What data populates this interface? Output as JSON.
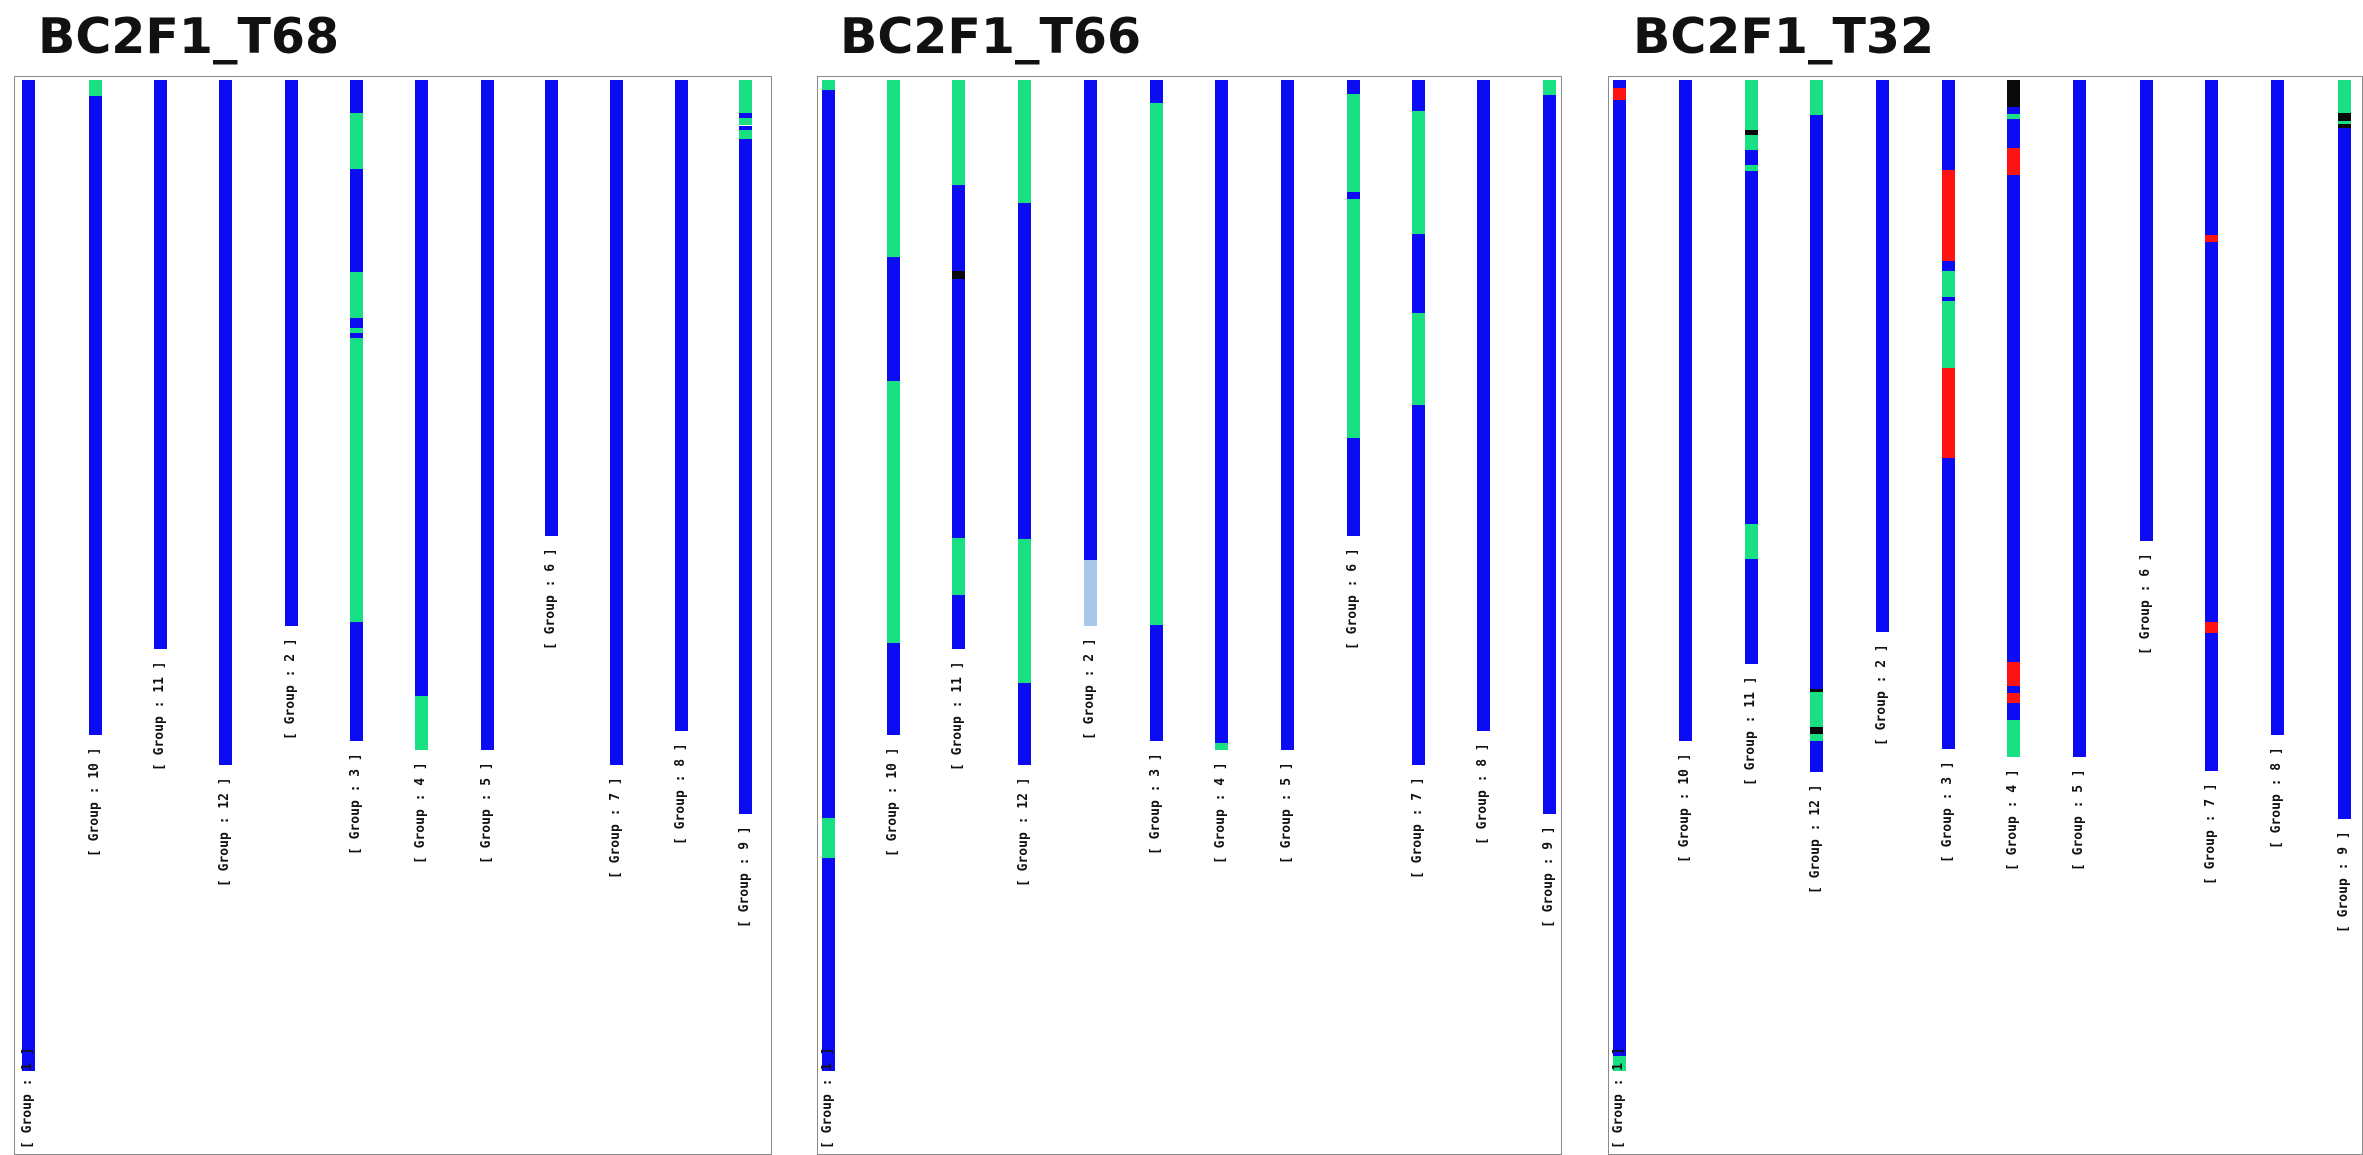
{
  "colors": {
    "blue": "#0b0bf4",
    "green": "#19e083",
    "red": "#ff1212",
    "black": "#0a0a0a",
    "lightblue": "#a8c8ea"
  },
  "panels": [
    {
      "title": "BC2F1_T68",
      "chromosomes": [
        {
          "group": "[ Group : 1 ]",
          "length": 0.925,
          "segments": [
            [
              0,
              1,
              "blue"
            ]
          ]
        },
        {
          "group": "[ Group : 10 ]",
          "length": 0.612,
          "segments": [
            [
              0,
              0.025,
              "green"
            ],
            [
              0.025,
              1,
              "blue"
            ]
          ]
        },
        {
          "group": "[ Group : 11 ]",
          "length": 0.531,
          "segments": [
            [
              0,
              1,
              "blue"
            ]
          ]
        },
        {
          "group": "[ Group : 12 ]",
          "length": 0.64,
          "segments": [
            [
              0,
              1,
              "blue"
            ]
          ]
        },
        {
          "group": "[ Group : 2 ]",
          "length": 0.51,
          "segments": [
            [
              0,
              1,
              "blue"
            ]
          ]
        },
        {
          "group": "[ Group : 3 ]",
          "length": 0.617,
          "segments": [
            [
              0,
              0.05,
              "blue"
            ],
            [
              0.05,
              0.135,
              "green"
            ],
            [
              0.135,
              0.29,
              "blue"
            ],
            [
              0.29,
              0.36,
              "green"
            ],
            [
              0.36,
              0.375,
              "blue"
            ],
            [
              0.375,
              0.382,
              "green"
            ],
            [
              0.382,
              0.39,
              "blue"
            ],
            [
              0.39,
              0.82,
              "green"
            ],
            [
              0.82,
              1,
              "blue"
            ]
          ]
        },
        {
          "group": "[ Group : 4 ]",
          "length": 0.626,
          "segments": [
            [
              0,
              0.92,
              "blue"
            ],
            [
              0.92,
              1,
              "green"
            ]
          ]
        },
        {
          "group": "[ Group : 5 ]",
          "length": 0.626,
          "segments": [
            [
              0,
              1,
              "blue"
            ]
          ]
        },
        {
          "group": "[ Group : 6 ]",
          "length": 0.426,
          "segments": [
            [
              0,
              1,
              "blue"
            ]
          ]
        },
        {
          "group": "[ Group : 7 ]",
          "length": 0.64,
          "segments": [
            [
              0,
              1,
              "blue"
            ]
          ]
        },
        {
          "group": "[ Group : 8 ]",
          "length": 0.608,
          "segments": [
            [
              0,
              1,
              "blue"
            ]
          ]
        },
        {
          "group": "[ Group : 9 ]",
          "length": 0.685,
          "segments": [
            [
              0,
              0.045,
              "green"
            ],
            [
              0.045,
              0.052,
              "blue"
            ],
            [
              0.052,
              0.062,
              "green"
            ],
            [
              0.062,
              0.068,
              "blue"
            ],
            [
              0.068,
              0.08,
              "green"
            ],
            [
              0.08,
              1,
              "blue"
            ]
          ]
        }
      ]
    },
    {
      "title": "BC2F1_T66",
      "chromosomes": [
        {
          "group": "[ Group : 1 ]",
          "length": 0.925,
          "segments": [
            [
              0,
              0.01,
              "green"
            ],
            [
              0.01,
              0.745,
              "blue"
            ],
            [
              0.745,
              0.785,
              "green"
            ],
            [
              0.785,
              1,
              "blue"
            ]
          ]
        },
        {
          "group": "[ Group : 10 ]",
          "length": 0.612,
          "segments": [
            [
              0,
              0.27,
              "green"
            ],
            [
              0.27,
              0.46,
              "blue"
            ],
            [
              0.46,
              0.86,
              "green"
            ],
            [
              0.86,
              1,
              "blue"
            ]
          ]
        },
        {
          "group": "[ Group : 11 ]",
          "length": 0.531,
          "segments": [
            [
              0,
              0.185,
              "green"
            ],
            [
              0.185,
              0.335,
              "blue"
            ],
            [
              0.335,
              0.35,
              "black"
            ],
            [
              0.35,
              0.805,
              "blue"
            ],
            [
              0.805,
              0.905,
              "green"
            ],
            [
              0.905,
              1,
              "blue"
            ]
          ]
        },
        {
          "group": "[ Group : 12 ]",
          "length": 0.64,
          "segments": [
            [
              0,
              0.18,
              "green"
            ],
            [
              0.18,
              0.67,
              "blue"
            ],
            [
              0.67,
              0.88,
              "green"
            ],
            [
              0.88,
              1,
              "blue"
            ]
          ]
        },
        {
          "group": "[ Group : 2 ]",
          "length": 0.51,
          "segments": [
            [
              0,
              0.88,
              "blue"
            ],
            [
              0.88,
              1,
              "lightblue"
            ]
          ]
        },
        {
          "group": "[ Group : 3 ]",
          "length": 0.617,
          "segments": [
            [
              0,
              0.035,
              "blue"
            ],
            [
              0.035,
              0.825,
              "green"
            ],
            [
              0.825,
              1,
              "blue"
            ]
          ]
        },
        {
          "group": "[ Group : 4 ]",
          "length": 0.626,
          "segments": [
            [
              0,
              0.99,
              "blue"
            ],
            [
              0.99,
              1,
              "green"
            ]
          ]
        },
        {
          "group": "[ Group : 5 ]",
          "length": 0.626,
          "segments": [
            [
              0,
              1,
              "blue"
            ]
          ]
        },
        {
          "group": "[ Group : 6 ]",
          "length": 0.426,
          "segments": [
            [
              0,
              0.03,
              "blue"
            ],
            [
              0.03,
              0.245,
              "green"
            ],
            [
              0.245,
              0.26,
              "blue"
            ],
            [
              0.26,
              0.785,
              "green"
            ],
            [
              0.785,
              1,
              "blue"
            ]
          ]
        },
        {
          "group": "[ Group : 7 ]",
          "length": 0.64,
          "segments": [
            [
              0,
              0.045,
              "blue"
            ],
            [
              0.045,
              0.225,
              "green"
            ],
            [
              0.225,
              0.34,
              "blue"
            ],
            [
              0.34,
              0.475,
              "green"
            ],
            [
              0.475,
              1,
              "blue"
            ]
          ]
        },
        {
          "group": "[ Group : 8 ]",
          "length": 0.608,
          "segments": [
            [
              0,
              1,
              "blue"
            ]
          ]
        },
        {
          "group": "[ Group : 9 ]",
          "length": 0.685,
          "segments": [
            [
              0,
              0.02,
              "green"
            ],
            [
              0.02,
              1,
              "blue"
            ]
          ]
        }
      ]
    },
    {
      "title": "BC2F1_T32",
      "chromosomes": [
        {
          "group": "[ Group : 1 ]",
          "length": 0.925,
          "segments": [
            [
              0,
              0.008,
              "blue"
            ],
            [
              0.008,
              0.02,
              "red"
            ],
            [
              0.02,
              0.985,
              "blue"
            ],
            [
              0.985,
              1,
              "green"
            ]
          ]
        },
        {
          "group": "[ Group : 10 ]",
          "length": 0.617,
          "segments": [
            [
              0,
              1,
              "blue"
            ]
          ]
        },
        {
          "group": "[ Group : 11 ]",
          "length": 0.545,
          "segments": [
            [
              0,
              0.085,
              "green"
            ],
            [
              0.085,
              0.095,
              "black"
            ],
            [
              0.095,
              0.12,
              "green"
            ],
            [
              0.12,
              0.145,
              "blue"
            ],
            [
              0.145,
              0.155,
              "green"
            ],
            [
              0.155,
              0.165,
              "blue"
            ],
            [
              0.165,
              0.76,
              "blue"
            ],
            [
              0.76,
              0.82,
              "green"
            ],
            [
              0.82,
              1,
              "blue"
            ]
          ]
        },
        {
          "group": "[ Group : 12 ]",
          "length": 0.646,
          "segments": [
            [
              0,
              0.05,
              "green"
            ],
            [
              0.05,
              0.88,
              "blue"
            ],
            [
              0.88,
              0.885,
              "black"
            ],
            [
              0.885,
              0.935,
              "green"
            ],
            [
              0.935,
              0.945,
              "black"
            ],
            [
              0.945,
              0.955,
              "green"
            ],
            [
              0.955,
              1,
              "blue"
            ]
          ]
        },
        {
          "group": "[ Group : 2 ]",
          "length": 0.515,
          "segments": [
            [
              0,
              1,
              "blue"
            ]
          ]
        },
        {
          "group": "[ Group : 3 ]",
          "length": 0.625,
          "segments": [
            [
              0,
              0.135,
              "blue"
            ],
            [
              0.135,
              0.27,
              "red"
            ],
            [
              0.27,
              0.285,
              "blue"
            ],
            [
              0.285,
              0.325,
              "green"
            ],
            [
              0.325,
              0.33,
              "blue"
            ],
            [
              0.33,
              0.43,
              "green"
            ],
            [
              0.43,
              0.565,
              "red"
            ],
            [
              0.565,
              1,
              "blue"
            ]
          ]
        },
        {
          "group": "[ Group : 4 ]",
          "length": 0.632,
          "segments": [
            [
              0,
              0.04,
              "black"
            ],
            [
              0.04,
              0.05,
              "blue"
            ],
            [
              0.05,
              0.057,
              "green"
            ],
            [
              0.057,
              0.1,
              "blue"
            ],
            [
              0.1,
              0.14,
              "red"
            ],
            [
              0.14,
              0.86,
              "blue"
            ],
            [
              0.86,
              0.895,
              "red"
            ],
            [
              0.895,
              0.905,
              "blue"
            ],
            [
              0.905,
              0.92,
              "red"
            ],
            [
              0.92,
              0.945,
              "blue"
            ],
            [
              0.945,
              1,
              "green"
            ]
          ]
        },
        {
          "group": "[ Group : 5 ]",
          "length": 0.632,
          "segments": [
            [
              0,
              1,
              "blue"
            ]
          ]
        },
        {
          "group": "[ Group : 6 ]",
          "length": 0.43,
          "segments": [
            [
              0,
              1,
              "blue"
            ]
          ]
        },
        {
          "group": "[ Group : 7 ]",
          "length": 0.645,
          "segments": [
            [
              0,
              0.225,
              "blue"
            ],
            [
              0.225,
              0.235,
              "red"
            ],
            [
              0.235,
              0.785,
              "blue"
            ],
            [
              0.785,
              0.8,
              "red"
            ],
            [
              0.8,
              1,
              "blue"
            ]
          ]
        },
        {
          "group": "[ Group : 8 ]",
          "length": 0.612,
          "segments": [
            [
              0,
              1,
              "blue"
            ]
          ]
        },
        {
          "group": "[ Group : 9 ]",
          "length": 0.69,
          "segments": [
            [
              0,
              0.045,
              "green"
            ],
            [
              0.045,
              0.055,
              "black"
            ],
            [
              0.055,
              0.06,
              "green"
            ],
            [
              0.06,
              0.065,
              "black"
            ],
            [
              0.065,
              1,
              "blue"
            ]
          ]
        }
      ]
    }
  ]
}
